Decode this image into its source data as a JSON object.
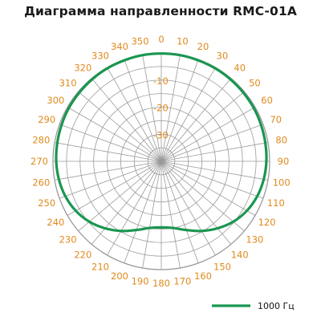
{
  "chart_data": {
    "type": "polar-line",
    "title": "Диаграмма направленности RMC-01A",
    "angle_ticks": [
      0,
      10,
      20,
      30,
      40,
      50,
      60,
      70,
      80,
      90,
      100,
      110,
      120,
      130,
      140,
      150,
      160,
      170,
      180,
      190,
      200,
      210,
      220,
      230,
      240,
      250,
      260,
      270,
      280,
      290,
      300,
      310,
      320,
      330,
      340,
      350
    ],
    "radial_ticks": [
      0,
      -10,
      -20,
      -30
    ],
    "rlim": [
      -40,
      0
    ],
    "grid": true,
    "legend_position": "bottom-right",
    "series": [
      {
        "name": "1000 Гц",
        "color": "#1a9650",
        "points": [
          {
            "angle": 0,
            "value": -0.2
          },
          {
            "angle": 10,
            "value": -0.2
          },
          {
            "angle": 20,
            "value": -0.3
          },
          {
            "angle": 30,
            "value": -0.3
          },
          {
            "angle": 40,
            "value": -0.4
          },
          {
            "angle": 50,
            "value": -0.5
          },
          {
            "angle": 60,
            "value": -0.6
          },
          {
            "angle": 70,
            "value": -0.8
          },
          {
            "angle": 80,
            "value": -1.0
          },
          {
            "angle": 90,
            "value": -1.2
          },
          {
            "angle": 100,
            "value": -1.6
          },
          {
            "angle": 110,
            "value": -2.3
          },
          {
            "angle": 120,
            "value": -3.5
          },
          {
            "angle": 130,
            "value": -5.3
          },
          {
            "angle": 140,
            "value": -7.7
          },
          {
            "angle": 150,
            "value": -10.3
          },
          {
            "angle": 160,
            "value": -13.0
          },
          {
            "angle": 170,
            "value": -15.0
          },
          {
            "angle": 180,
            "value": -15.6
          },
          {
            "angle": 190,
            "value": -15.0
          },
          {
            "angle": 200,
            "value": -13.0
          },
          {
            "angle": 210,
            "value": -10.3
          },
          {
            "angle": 220,
            "value": -7.7
          },
          {
            "angle": 230,
            "value": -5.3
          },
          {
            "angle": 240,
            "value": -3.5
          },
          {
            "angle": 250,
            "value": -2.3
          },
          {
            "angle": 260,
            "value": -1.6
          },
          {
            "angle": 270,
            "value": -1.2
          },
          {
            "angle": 280,
            "value": -1.0
          },
          {
            "angle": 290,
            "value": -0.8
          },
          {
            "angle": 300,
            "value": -0.6
          },
          {
            "angle": 310,
            "value": -0.5
          },
          {
            "angle": 320,
            "value": -0.4
          },
          {
            "angle": 330,
            "value": -0.3
          },
          {
            "angle": 340,
            "value": -0.3
          },
          {
            "angle": 350,
            "value": -0.2
          }
        ]
      }
    ],
    "colors": {
      "grid": "#9a9a9a",
      "labels": "#e08a1e",
      "title": "#1a1a1a"
    }
  }
}
